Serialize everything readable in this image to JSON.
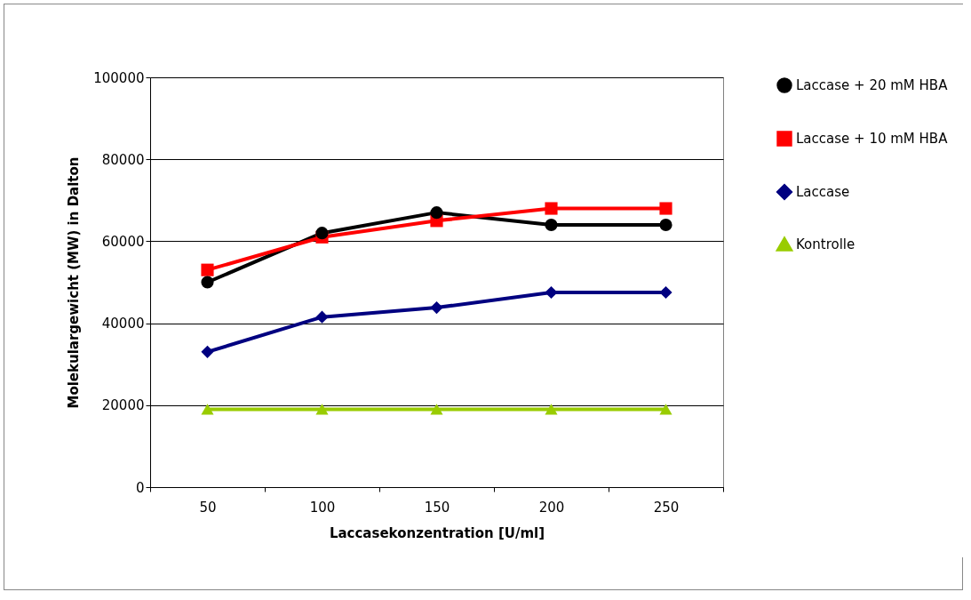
{
  "chart_data": {
    "type": "line",
    "xlabel": "Laccasekonzentration [U/ml]",
    "ylabel": "Molekulargewicht (MW) in Dalton",
    "categories": [
      "50",
      "100",
      "150",
      "200",
      "250"
    ],
    "series": [
      {
        "name": "Laccase + 20 mM HBA",
        "color": "#000000",
        "marker": "circle",
        "values": [
          50000,
          62000,
          67000,
          64000,
          64000
        ]
      },
      {
        "name": "Laccase + 10 mM HBA",
        "color": "#ff0000",
        "marker": "square",
        "values": [
          53000,
          61000,
          65000,
          68000,
          68000
        ]
      },
      {
        "name": "Laccase",
        "color": "#000080",
        "marker": "diamond",
        "values": [
          33000,
          41500,
          43800,
          47500,
          47500
        ]
      },
      {
        "name": "Kontrolle",
        "color": "#99cc00",
        "marker": "triangle",
        "values": [
          19000,
          19000,
          19000,
          19000,
          19000
        ]
      }
    ],
    "ylim": [
      0,
      100000
    ],
    "yticks": [
      0,
      20000,
      40000,
      60000,
      80000,
      100000
    ],
    "grid": "y",
    "legend": "right",
    "line_style": "solid"
  }
}
